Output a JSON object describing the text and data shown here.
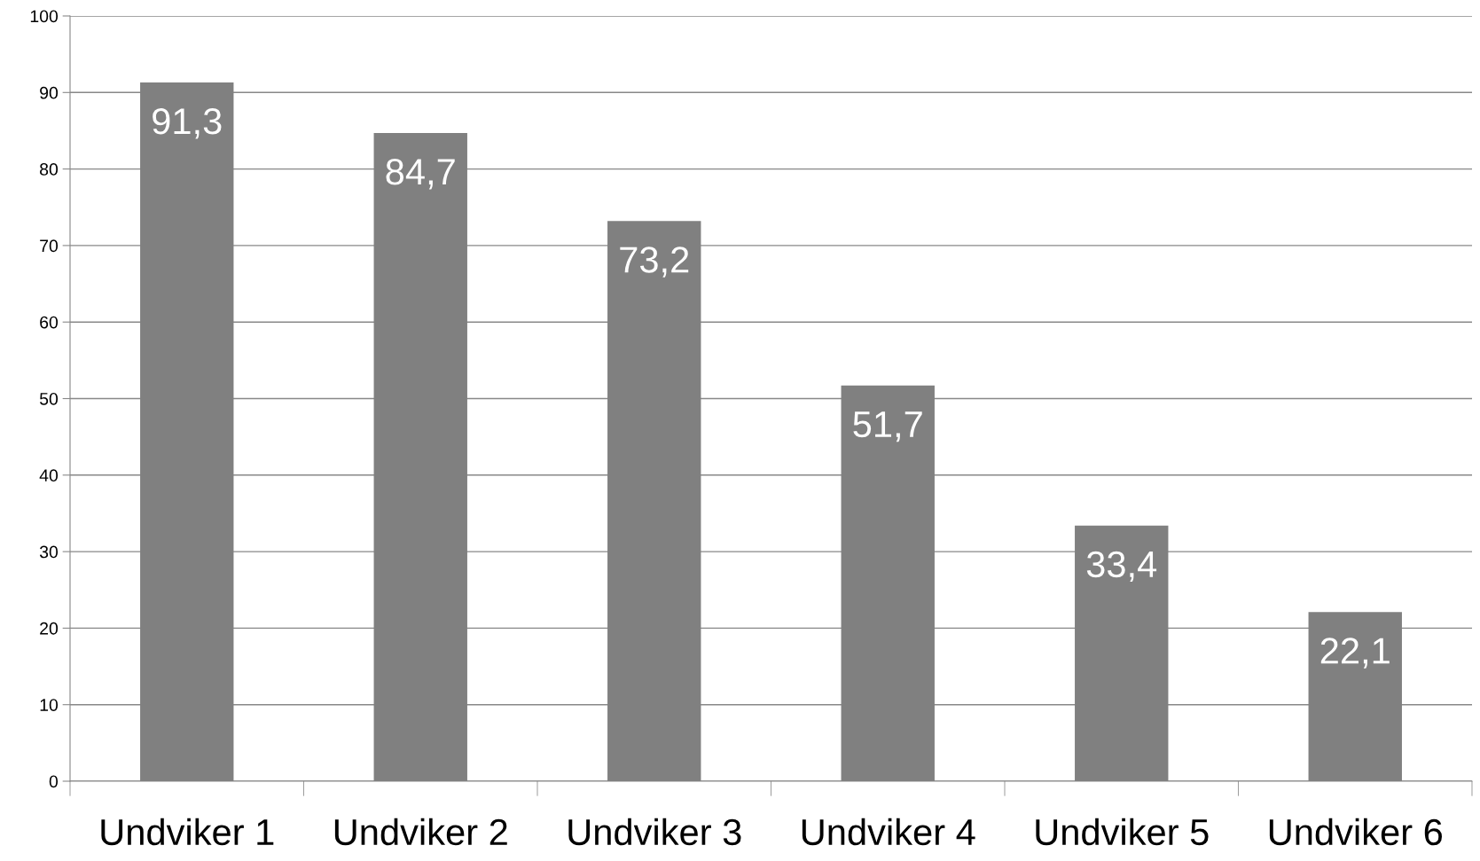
{
  "chart_data": {
    "type": "bar",
    "categories": [
      "Undviker 1",
      "Undviker 2",
      "Undviker 3",
      "Undviker 4",
      "Undviker 5",
      "Undviker 6"
    ],
    "values": [
      91.3,
      84.7,
      73.2,
      51.7,
      33.4,
      22.1
    ],
    "value_labels": [
      "91,3",
      "84,7",
      "73,2",
      "51,7",
      "33,4",
      "22,1"
    ],
    "color": "#808080",
    "ylim": [
      0,
      100
    ],
    "yticks": [
      0,
      10,
      20,
      30,
      40,
      50,
      60,
      70,
      80,
      90,
      100
    ],
    "grid": "y",
    "legend": false
  }
}
